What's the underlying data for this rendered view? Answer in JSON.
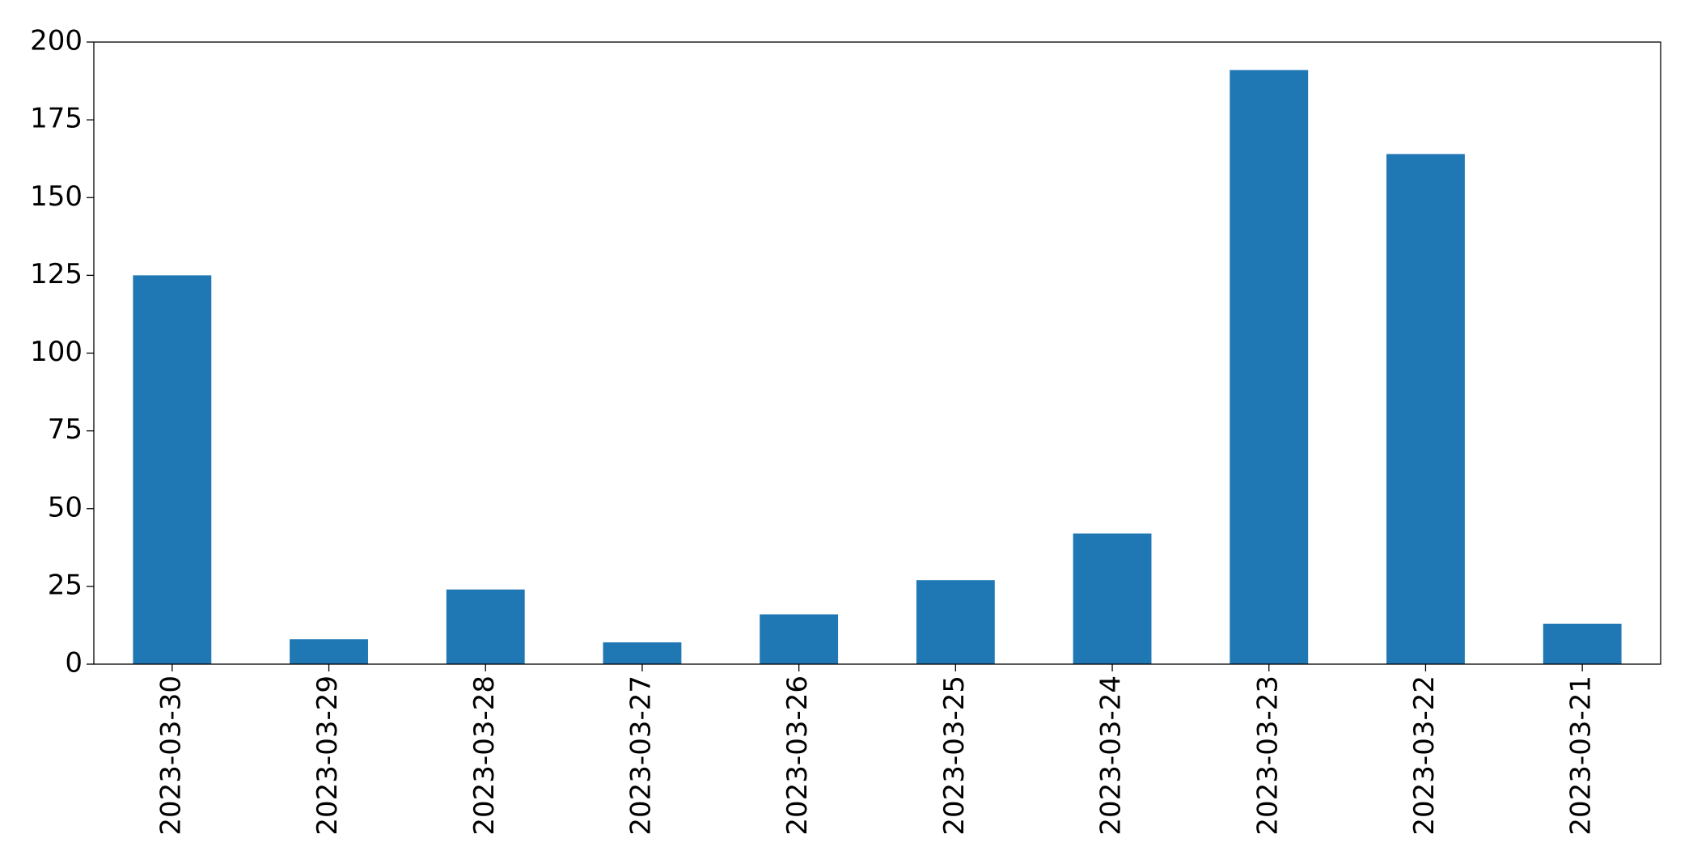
{
  "chart_data": {
    "type": "bar",
    "categories": [
      "2023-03-30",
      "2023-03-29",
      "2023-03-28",
      "2023-03-27",
      "2023-03-26",
      "2023-03-25",
      "2023-03-24",
      "2023-03-23",
      "2023-03-22",
      "2023-03-21"
    ],
    "values": [
      125,
      8,
      24,
      7,
      16,
      27,
      42,
      191,
      164,
      13
    ],
    "color": "#1f77b4",
    "ylim": [
      0,
      200
    ],
    "yticks": [
      0,
      25,
      50,
      75,
      100,
      125,
      150,
      175,
      200
    ],
    "grid": false
  }
}
